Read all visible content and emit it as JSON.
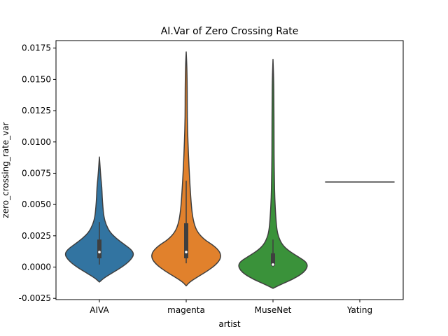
{
  "chart_data": {
    "type": "violin",
    "title": "AI.Var of Zero Crossing Rate",
    "xlabel": "artist",
    "ylabel": "zero_crossing_rate_var",
    "ylim": [
      -0.0026,
      0.0181
    ],
    "yticks": [
      "-0.0025",
      "0.0000",
      "0.0025",
      "0.0050",
      "0.0075",
      "0.0100",
      "0.0125",
      "0.0150",
      "0.0175"
    ],
    "ytick_values": [
      -0.0025,
      0.0,
      0.0025,
      0.005,
      0.0075,
      0.01,
      0.0125,
      0.015,
      0.0175
    ],
    "categories": [
      "AIVA",
      "magenta",
      "MuseNet",
      "Yating"
    ],
    "grid": false,
    "series": [
      {
        "category": "AIVA",
        "color": "#3274a1",
        "range": [
          -0.0012,
          0.0088
        ],
        "whisker": [
          0.0002,
          0.0036
        ],
        "q1": 0.0007,
        "q3": 0.0022,
        "median": 0.0012,
        "density_y": [
          -0.0012,
          -0.0009,
          -0.0005,
          0.0,
          0.0005,
          0.001,
          0.0014,
          0.0018,
          0.0023,
          0.0028,
          0.0034,
          0.004,
          0.0048,
          0.0056,
          0.0064,
          0.0072,
          0.008,
          0.0088
        ],
        "density_w": [
          0.0,
          0.12,
          0.35,
          0.65,
          0.88,
          1.0,
          0.92,
          0.72,
          0.48,
          0.3,
          0.19,
          0.13,
          0.1,
          0.08,
          0.07,
          0.04,
          0.02,
          0.0
        ]
      },
      {
        "category": "magenta",
        "color": "#e1812c",
        "range": [
          -0.0015,
          0.0172
        ],
        "whisker": [
          0.0003,
          0.0069
        ],
        "q1": 0.0007,
        "q3": 0.0035,
        "median": 0.0012,
        "density_y": [
          -0.0015,
          -0.0012,
          -0.0008,
          -0.0003,
          0.0002,
          0.0007,
          0.0012,
          0.0017,
          0.0022,
          0.0028,
          0.0035,
          0.0045,
          0.006,
          0.008,
          0.01,
          0.012,
          0.014,
          0.016,
          0.0172
        ],
        "density_w": [
          0.0,
          0.1,
          0.32,
          0.62,
          0.86,
          1.0,
          0.98,
          0.8,
          0.52,
          0.32,
          0.22,
          0.16,
          0.12,
          0.08,
          0.05,
          0.03,
          0.03,
          0.02,
          0.0
        ]
      },
      {
        "category": "MuseNet",
        "color": "#3a923a",
        "range": [
          -0.0017,
          0.0166
        ],
        "whisker": [
          0.0,
          0.0022
        ],
        "q1": 0.0001,
        "q3": 0.0011,
        "median": 0.0002,
        "density_y": [
          -0.0017,
          -0.0014,
          -0.001,
          -0.0005,
          0.0,
          0.0004,
          0.0008,
          0.0013,
          0.0018,
          0.0024,
          0.003,
          0.004,
          0.0055,
          0.007,
          0.009,
          0.011,
          0.013,
          0.015,
          0.0166
        ],
        "density_w": [
          0.0,
          0.22,
          0.55,
          0.86,
          1.0,
          0.96,
          0.74,
          0.45,
          0.26,
          0.16,
          0.11,
          0.08,
          0.05,
          0.04,
          0.03,
          0.03,
          0.025,
          0.02,
          0.0
        ]
      },
      {
        "category": "Yating",
        "color": "#c03d3e",
        "single_value": 0.0068
      }
    ]
  }
}
